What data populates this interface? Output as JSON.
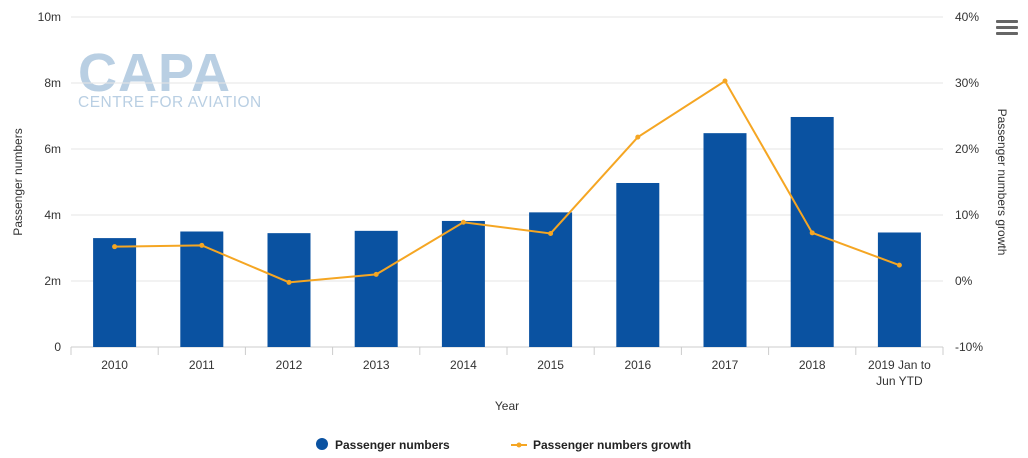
{
  "logo": {
    "name": "CAPA",
    "subtitle": "CENTRE FOR AVIATION"
  },
  "menu": {
    "icon": "hamburger-menu-icon"
  },
  "colors": {
    "bars": "#0a52a1",
    "line": "#f5a623",
    "grid": "#e6e6e6",
    "axis": "#cccccc"
  },
  "chart_data": {
    "type": "bar",
    "categories": [
      "2010",
      "2011",
      "2012",
      "2013",
      "2014",
      "2015",
      "2016",
      "2017",
      "2018",
      "2019 Jan to Jun YTD"
    ],
    "category_label_lines": [
      [
        "2010"
      ],
      [
        "2011"
      ],
      [
        "2012"
      ],
      [
        "2013"
      ],
      [
        "2014"
      ],
      [
        "2015"
      ],
      [
        "2016"
      ],
      [
        "2017"
      ],
      [
        "2018"
      ],
      [
        "2019 Jan to",
        "Jun YTD"
      ]
    ],
    "series": [
      {
        "name": "Passenger numbers",
        "type": "bar",
        "axis": "left",
        "color": "#0a52a1",
        "values": [
          3.3,
          3.5,
          3.45,
          3.52,
          3.82,
          4.08,
          4.97,
          6.48,
          6.97,
          3.47
        ]
      },
      {
        "name": "Passenger numbers growth",
        "type": "line",
        "axis": "right",
        "color": "#f5a623",
        "values": [
          5.2,
          5.4,
          -0.2,
          1.0,
          8.9,
          7.2,
          21.8,
          30.3,
          7.3,
          2.4
        ]
      }
    ],
    "xlabel": "Year",
    "ylabel": "Passenger numbers",
    "y2label": "Passenger numbers growth",
    "ylim": [
      0,
      10
    ],
    "yticks": [
      0,
      2,
      4,
      6,
      8,
      10
    ],
    "ytick_labels": [
      "0",
      "2m",
      "4m",
      "6m",
      "8m",
      "10m"
    ],
    "y2lim": [
      -10,
      40
    ],
    "y2ticks": [
      -10,
      0,
      10,
      20,
      30,
      40
    ],
    "y2tick_labels": [
      "-10%",
      "0%",
      "10%",
      "20%",
      "30%",
      "40%"
    ],
    "grid": true,
    "legend": "bottom-center"
  }
}
